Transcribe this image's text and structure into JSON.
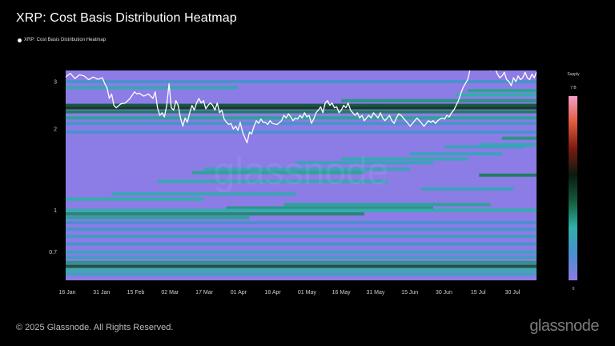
{
  "header": {
    "title": "XRP: Cost Basis Distribution Heatmap",
    "legend_label": "XRP: Cost Basis Distribution Heatmap"
  },
  "footer": {
    "copyright": "© 2025 Glassnode. All Rights Reserved.",
    "brand": "glassnode"
  },
  "colors": {
    "background": "#000000",
    "heatmap_base": "#8c7ce6",
    "price_line": "#ffffff",
    "low_band": "#37a7b9",
    "high_band": "#0e3a2a"
  },
  "chart_data": {
    "type": "heatmap",
    "title": "XRP: Cost Basis Distribution Heatmap",
    "y_scale": "log",
    "ylim": [
      0.55,
      3.3
    ],
    "y_ticks": [
      {
        "value": 3,
        "label": "3"
      },
      {
        "value": 2,
        "label": "2"
      },
      {
        "value": 1,
        "label": "1"
      },
      {
        "value": 0.7,
        "label": "0.7"
      }
    ],
    "x_ticks": [
      "16 Jan",
      "31 Jan",
      "15 Feb",
      "02 Mar",
      "17 Mar",
      "01 Apr",
      "16 Apr",
      "01 May",
      "16 May",
      "31 May",
      "15 Jun",
      "30 Jun",
      "15 Jul",
      "30 Jul"
    ],
    "x_range_days": [
      0,
      205
    ],
    "colorbar": {
      "label": "Supply",
      "max_label": "7 B",
      "min_label": "0",
      "gradient": [
        "#8c7ce6",
        "#4a8fd0",
        "#2fb0a8",
        "#145c3a",
        "#0a1a10",
        "#7a1a10",
        "#e05a3a",
        "#f2a0c8"
      ]
    },
    "price_series": {
      "name": "XRP price",
      "points": [
        [
          0,
          3.12
        ],
        [
          2,
          3.22
        ],
        [
          4,
          3.08
        ],
        [
          6,
          3.18
        ],
        [
          8,
          3.15
        ],
        [
          10,
          3.05
        ],
        [
          12,
          3.12
        ],
        [
          14,
          3.06
        ],
        [
          16,
          3.1
        ],
        [
          17,
          2.95
        ],
        [
          18,
          2.85
        ],
        [
          19,
          2.6
        ],
        [
          20,
          2.7
        ],
        [
          21,
          2.45
        ],
        [
          22,
          2.4
        ],
        [
          24,
          2.48
        ],
        [
          26,
          2.5
        ],
        [
          28,
          2.6
        ],
        [
          30,
          2.75
        ],
        [
          31,
          2.7
        ],
        [
          32,
          2.72
        ],
        [
          34,
          2.65
        ],
        [
          36,
          2.7
        ],
        [
          38,
          2.6
        ],
        [
          39,
          2.75
        ],
        [
          40,
          2.4
        ],
        [
          41,
          2.25
        ],
        [
          42,
          2.3
        ],
        [
          43,
          2.22
        ],
        [
          44,
          2.45
        ],
        [
          45,
          2.95
        ],
        [
          46,
          2.4
        ],
        [
          47,
          2.35
        ],
        [
          48,
          2.55
        ],
        [
          49,
          2.45
        ],
        [
          50,
          2.2
        ],
        [
          51,
          2.05
        ],
        [
          52,
          2.2
        ],
        [
          53,
          2.12
        ],
        [
          54,
          2.3
        ],
        [
          55,
          2.45
        ],
        [
          56,
          2.35
        ],
        [
          57,
          2.5
        ],
        [
          58,
          2.6
        ],
        [
          59,
          2.5
        ],
        [
          60,
          2.55
        ],
        [
          61,
          2.38
        ],
        [
          62,
          2.45
        ],
        [
          63,
          2.5
        ],
        [
          64,
          2.45
        ],
        [
          65,
          2.35
        ],
        [
          66,
          2.5
        ],
        [
          67,
          2.3
        ],
        [
          68,
          2.35
        ],
        [
          69,
          2.18
        ],
        [
          70,
          2.12
        ],
        [
          71,
          2.08
        ],
        [
          72,
          2.1
        ],
        [
          73,
          2.0
        ],
        [
          74,
          2.05
        ],
        [
          75,
          1.98
        ],
        [
          76,
          2.12
        ],
        [
          77,
          1.95
        ],
        [
          78,
          1.86
        ],
        [
          79,
          1.78
        ],
        [
          80,
          1.95
        ],
        [
          81,
          1.92
        ],
        [
          82,
          2.05
        ],
        [
          83,
          2.15
        ],
        [
          84,
          2.1
        ],
        [
          85,
          2.18
        ],
        [
          86,
          2.12
        ],
        [
          87,
          2.12
        ],
        [
          88,
          2.08
        ],
        [
          89,
          2.15
        ],
        [
          90,
          2.1
        ],
        [
          92,
          2.08
        ],
        [
          94,
          2.15
        ],
        [
          95,
          2.25
        ],
        [
          96,
          2.2
        ],
        [
          97,
          2.28
        ],
        [
          98,
          2.22
        ],
        [
          99,
          2.15
        ],
        [
          100,
          2.2
        ],
        [
          101,
          2.18
        ],
        [
          102,
          2.25
        ],
        [
          103,
          2.2
        ],
        [
          104,
          2.3
        ],
        [
          105,
          2.22
        ],
        [
          106,
          2.25
        ],
        [
          107,
          2.1
        ],
        [
          108,
          2.18
        ],
        [
          109,
          2.3
        ],
        [
          110,
          2.35
        ],
        [
          111,
          2.42
        ],
        [
          112,
          2.3
        ],
        [
          113,
          2.5
        ],
        [
          114,
          2.55
        ],
        [
          115,
          2.45
        ],
        [
          116,
          2.5
        ],
        [
          117,
          2.4
        ],
        [
          118,
          2.42
        ],
        [
          119,
          2.3
        ],
        [
          120,
          2.35
        ],
        [
          121,
          2.45
        ],
        [
          122,
          2.4
        ],
        [
          123,
          2.5
        ],
        [
          124,
          2.35
        ],
        [
          125,
          2.3
        ],
        [
          126,
          2.25
        ],
        [
          127,
          2.3
        ],
        [
          128,
          2.2
        ],
        [
          129,
          2.25
        ],
        [
          130,
          2.15
        ],
        [
          131,
          2.2
        ],
        [
          132,
          2.25
        ],
        [
          133,
          2.2
        ],
        [
          134,
          2.3
        ],
        [
          135,
          2.25
        ],
        [
          136,
          2.2
        ],
        [
          137,
          2.3
        ],
        [
          138,
          2.2
        ],
        [
          139,
          2.15
        ],
        [
          140,
          2.2
        ],
        [
          141,
          2.25
        ],
        [
          142,
          2.15
        ],
        [
          143,
          2.1
        ],
        [
          144,
          2.2
        ],
        [
          145,
          2.28
        ],
        [
          146,
          2.25
        ],
        [
          147,
          2.2
        ],
        [
          148,
          2.15
        ],
        [
          149,
          2.1
        ],
        [
          150,
          2.05
        ],
        [
          151,
          2.1
        ],
        [
          152,
          2.15
        ],
        [
          153,
          2.2
        ],
        [
          154,
          2.15
        ],
        [
          155,
          2.1
        ],
        [
          156,
          2.05
        ],
        [
          157,
          2.1
        ],
        [
          158,
          2.15
        ],
        [
          159,
          2.12
        ],
        [
          160,
          2.15
        ],
        [
          161,
          2.1
        ],
        [
          162,
          2.15
        ],
        [
          163,
          2.18
        ],
        [
          164,
          2.2
        ],
        [
          165,
          2.18
        ],
        [
          166,
          2.25
        ],
        [
          167,
          2.22
        ],
        [
          168,
          2.3
        ],
        [
          169,
          2.35
        ],
        [
          170,
          2.45
        ],
        [
          171,
          2.55
        ],
        [
          172,
          2.7
        ],
        [
          173,
          2.85
        ],
        [
          174,
          2.95
        ],
        [
          175,
          3.05
        ],
        [
          176,
          3.3
        ],
        [
          177,
          3.45
        ],
        [
          178,
          3.55
        ],
        [
          179,
          3.5
        ],
        [
          180,
          3.45
        ],
        [
          181,
          3.4
        ],
        [
          182,
          3.6
        ],
        [
          183,
          3.55
        ],
        [
          184,
          3.4
        ],
        [
          185,
          3.3
        ],
        [
          186,
          3.45
        ],
        [
          187,
          3.35
        ],
        [
          188,
          3.2
        ],
        [
          189,
          3.1
        ],
        [
          190,
          3.15
        ],
        [
          191,
          3.25
        ],
        [
          192,
          3.05
        ],
        [
          193,
          3.0
        ],
        [
          194,
          2.9
        ],
        [
          195,
          3.1
        ],
        [
          196,
          3.0
        ],
        [
          197,
          3.15
        ],
        [
          198,
          3.05
        ],
        [
          199,
          3.1
        ],
        [
          200,
          3.25
        ],
        [
          201,
          3.1
        ],
        [
          202,
          3.05
        ],
        [
          203,
          3.2
        ],
        [
          204,
          3.1
        ],
        [
          205,
          3.25
        ]
      ]
    },
    "bands": [
      {
        "y": 2.4,
        "start": 0,
        "end": 205,
        "intensity": 0.95
      },
      {
        "y": 2.45,
        "start": 0,
        "end": 205,
        "intensity": 0.85
      },
      {
        "y": 2.32,
        "start": 0,
        "end": 205,
        "intensity": 0.7
      },
      {
        "y": 2.2,
        "start": 0,
        "end": 205,
        "intensity": 0.55
      },
      {
        "y": 2.55,
        "start": 120,
        "end": 205,
        "intensity": 0.6
      },
      {
        "y": 2.68,
        "start": 170,
        "end": 205,
        "intensity": 0.5
      },
      {
        "y": 2.78,
        "start": 175,
        "end": 205,
        "intensity": 0.55
      },
      {
        "y": 2.85,
        "start": 0,
        "end": 75,
        "intensity": 0.45
      },
      {
        "y": 3.0,
        "start": 0,
        "end": 205,
        "intensity": 0.3
      },
      {
        "y": 2.1,
        "start": 0,
        "end": 205,
        "intensity": 0.3
      },
      {
        "y": 1.95,
        "start": 0,
        "end": 205,
        "intensity": 0.28
      },
      {
        "y": 1.85,
        "start": 190,
        "end": 205,
        "intensity": 0.6
      },
      {
        "y": 1.75,
        "start": 180,
        "end": 205,
        "intensity": 0.45
      },
      {
        "y": 1.72,
        "start": 165,
        "end": 200,
        "intensity": 0.4
      },
      {
        "y": 1.62,
        "start": 150,
        "end": 190,
        "intensity": 0.4
      },
      {
        "y": 1.55,
        "start": 120,
        "end": 175,
        "intensity": 0.45
      },
      {
        "y": 1.5,
        "start": 100,
        "end": 160,
        "intensity": 0.4
      },
      {
        "y": 1.42,
        "start": 60,
        "end": 150,
        "intensity": 0.4
      },
      {
        "y": 1.38,
        "start": 55,
        "end": 130,
        "intensity": 0.55
      },
      {
        "y": 1.35,
        "start": 180,
        "end": 205,
        "intensity": 0.7
      },
      {
        "y": 1.28,
        "start": 40,
        "end": 140,
        "intensity": 0.45
      },
      {
        "y": 1.2,
        "start": 155,
        "end": 195,
        "intensity": 0.4
      },
      {
        "y": 1.15,
        "start": 20,
        "end": 100,
        "intensity": 0.45
      },
      {
        "y": 1.1,
        "start": 0,
        "end": 60,
        "intensity": 0.5
      },
      {
        "y": 1.05,
        "start": 95,
        "end": 185,
        "intensity": 0.55
      },
      {
        "y": 1.02,
        "start": 70,
        "end": 160,
        "intensity": 0.6
      },
      {
        "y": 1.0,
        "start": 0,
        "end": 205,
        "intensity": 0.5
      },
      {
        "y": 0.97,
        "start": 0,
        "end": 130,
        "intensity": 0.65
      },
      {
        "y": 0.94,
        "start": 0,
        "end": 80,
        "intensity": 0.55
      },
      {
        "y": 0.9,
        "start": 0,
        "end": 205,
        "intensity": 0.25
      },
      {
        "y": 0.85,
        "start": 0,
        "end": 205,
        "intensity": 0.3
      },
      {
        "y": 0.8,
        "start": 0,
        "end": 205,
        "intensity": 0.35
      },
      {
        "y": 0.75,
        "start": 0,
        "end": 205,
        "intensity": 0.3
      },
      {
        "y": 0.7,
        "start": 0,
        "end": 205,
        "intensity": 0.4
      },
      {
        "y": 0.67,
        "start": 0,
        "end": 205,
        "intensity": 0.35
      },
      {
        "y": 0.64,
        "start": 0,
        "end": 205,
        "intensity": 0.6
      },
      {
        "y": 0.62,
        "start": 0,
        "end": 205,
        "intensity": 0.85
      },
      {
        "y": 0.6,
        "start": 0,
        "end": 205,
        "intensity": 0.5
      },
      {
        "y": 0.58,
        "start": 0,
        "end": 205,
        "intensity": 0.4
      }
    ]
  }
}
